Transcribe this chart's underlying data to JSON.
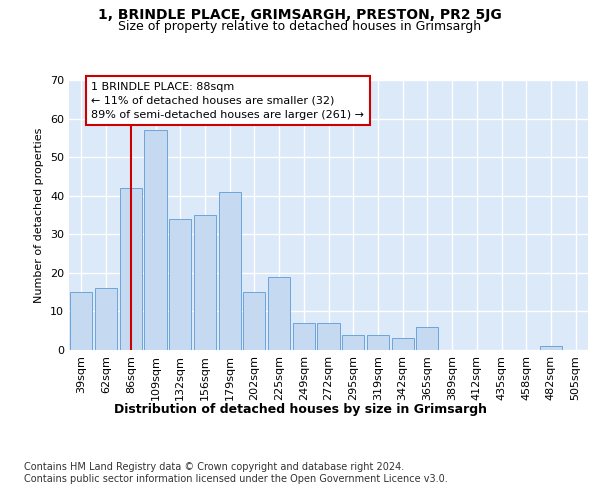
{
  "title": "1, BRINDLE PLACE, GRIMSARGH, PRESTON, PR2 5JG",
  "subtitle": "Size of property relative to detached houses in Grimsargh",
  "xlabel": "Distribution of detached houses by size in Grimsargh",
  "ylabel": "Number of detached properties",
  "categories": [
    "39sqm",
    "62sqm",
    "86sqm",
    "109sqm",
    "132sqm",
    "156sqm",
    "179sqm",
    "202sqm",
    "225sqm",
    "249sqm",
    "272sqm",
    "295sqm",
    "319sqm",
    "342sqm",
    "365sqm",
    "389sqm",
    "412sqm",
    "435sqm",
    "458sqm",
    "482sqm",
    "505sqm"
  ],
  "values": [
    15,
    16,
    42,
    57,
    34,
    35,
    41,
    15,
    19,
    7,
    7,
    4,
    4,
    3,
    6,
    0,
    0,
    0,
    0,
    1,
    0
  ],
  "bar_color": "#c5d9f0",
  "bar_edge_color": "#5b9bd5",
  "highlight_bar_index": 2,
  "highlight_color": "#cc0000",
  "annotation_text": "1 BRINDLE PLACE: 88sqm\n← 11% of detached houses are smaller (32)\n89% of semi-detached houses are larger (261) →",
  "annotation_box_color": "#ffffff",
  "annotation_box_edge": "#cc0000",
  "ylim": [
    0,
    70
  ],
  "yticks": [
    0,
    10,
    20,
    30,
    40,
    50,
    60,
    70
  ],
  "background_color": "#dce9f8",
  "grid_color": "#ffffff",
  "footer_text": "Contains HM Land Registry data © Crown copyright and database right 2024.\nContains public sector information licensed under the Open Government Licence v3.0.",
  "title_fontsize": 10,
  "subtitle_fontsize": 9,
  "xlabel_fontsize": 9,
  "ylabel_fontsize": 8,
  "tick_fontsize": 8,
  "annotation_fontsize": 8,
  "footer_fontsize": 7
}
